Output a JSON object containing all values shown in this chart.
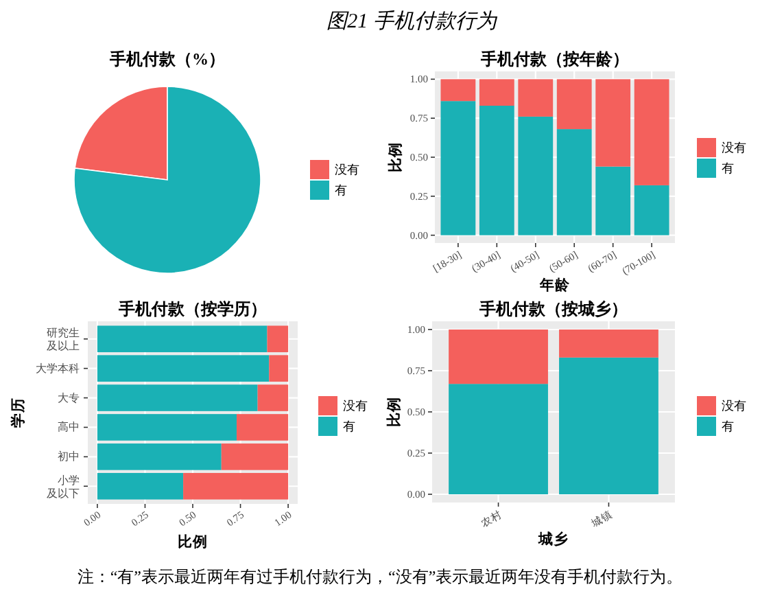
{
  "chart_data": [
    {
      "type": "other",
      "title": "图21 手机付款行为"
    },
    {
      "type": "pie",
      "title": "手机付款（%）",
      "categories": [
        "没有",
        "有"
      ],
      "values": [
        23,
        77
      ],
      "colors": [
        "#f4605c",
        "#1ab1b5"
      ],
      "legend": "right"
    },
    {
      "type": "bar",
      "title": "手机付款（按年龄）",
      "xlabel": "年龄",
      "ylabel": "比例",
      "categories": [
        "[18-30]",
        "(30-40]",
        "(40-50]",
        "(50-60]",
        "(60-70]",
        "(70-100]"
      ],
      "stacked": true,
      "series": [
        {
          "name": "有",
          "color": "#1ab1b5",
          "values": [
            0.86,
            0.83,
            0.76,
            0.68,
            0.44,
            0.32
          ]
        },
        {
          "name": "没有",
          "color": "#f4605c",
          "values": [
            0.14,
            0.17,
            0.24,
            0.32,
            0.56,
            0.68
          ]
        }
      ],
      "ylim": [
        -0.05,
        1.05
      ],
      "yticks": [
        {
          "value": 0,
          "label": "0.00"
        },
        {
          "value": 0.25,
          "label": "0.25"
        },
        {
          "value": 0.5,
          "label": "0.50"
        },
        {
          "value": 0.75,
          "label": "0.75"
        },
        {
          "value": 1,
          "label": "1.00"
        }
      ],
      "grid": true,
      "legend": "right"
    },
    {
      "type": "bar",
      "orientation": "horizontal",
      "title": "手机付款（按学历）",
      "xlabel": "比例",
      "ylabel": "学历",
      "categories": [
        "研究生及以上",
        "大学本科",
        "大专",
        "高中",
        "初中",
        "小学及以下"
      ],
      "stacked": true,
      "series": [
        {
          "name": "有",
          "color": "#1ab1b5",
          "values": [
            0.89,
            0.9,
            0.84,
            0.73,
            0.65,
            0.45
          ]
        },
        {
          "name": "没有",
          "color": "#f4605c",
          "values": [
            0.11,
            0.1,
            0.16,
            0.27,
            0.35,
            0.55
          ]
        }
      ],
      "xlim": [
        -0.05,
        1.05
      ],
      "xticks": [
        {
          "value": 0,
          "label": "0.00"
        },
        {
          "value": 0.25,
          "label": "0.25"
        },
        {
          "value": 0.5,
          "label": "0.50"
        },
        {
          "value": 0.75,
          "label": "0.75"
        },
        {
          "value": 1,
          "label": "1.00"
        }
      ],
      "grid": true,
      "legend": "right"
    },
    {
      "type": "bar",
      "title": "手机付款（按城乡）",
      "xlabel": "城乡",
      "ylabel": "比例",
      "categories": [
        "农村",
        "城镇"
      ],
      "stacked": true,
      "series": [
        {
          "name": "有",
          "color": "#1ab1b5",
          "values": [
            0.67,
            0.83
          ]
        },
        {
          "name": "没有",
          "color": "#f4605c",
          "values": [
            0.33,
            0.17
          ]
        }
      ],
      "ylim": [
        -0.05,
        1.05
      ],
      "yticks": [
        {
          "value": 0,
          "label": "0.00"
        },
        {
          "value": 0.25,
          "label": "0.25"
        },
        {
          "value": 0.5,
          "label": "0.50"
        },
        {
          "value": 0.75,
          "label": "0.75"
        },
        {
          "value": 1,
          "label": "1.00"
        }
      ],
      "grid": true,
      "legend": "right"
    },
    {
      "type": "other",
      "annotations": [
        "注：“有”表示最近两年有过手机付款行为，“没有”表示最近两年没有手机付款行为。"
      ]
    }
  ]
}
